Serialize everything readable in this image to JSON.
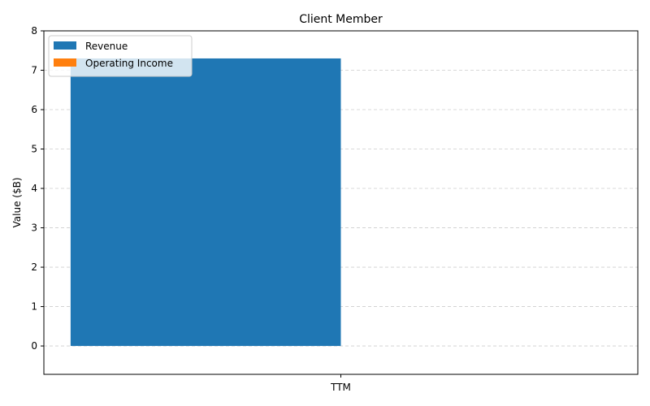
{
  "chart_data": {
    "type": "bar",
    "title": "Client Member",
    "xlabel": "",
    "ylabel": "Value ($B)",
    "categories": [
      "TTM"
    ],
    "series": [
      {
        "name": "Revenue",
        "values": [
          7.3
        ],
        "color": "#1f77b4"
      },
      {
        "name": "Operating Income",
        "values": [
          0
        ],
        "color": "#ff7f0e"
      }
    ],
    "ylim": [
      -0.72,
      8
    ],
    "yticks": [
      0,
      1,
      2,
      3,
      4,
      5,
      6,
      7,
      8
    ],
    "grid": "y-dashed",
    "legend_position": "top-left"
  }
}
